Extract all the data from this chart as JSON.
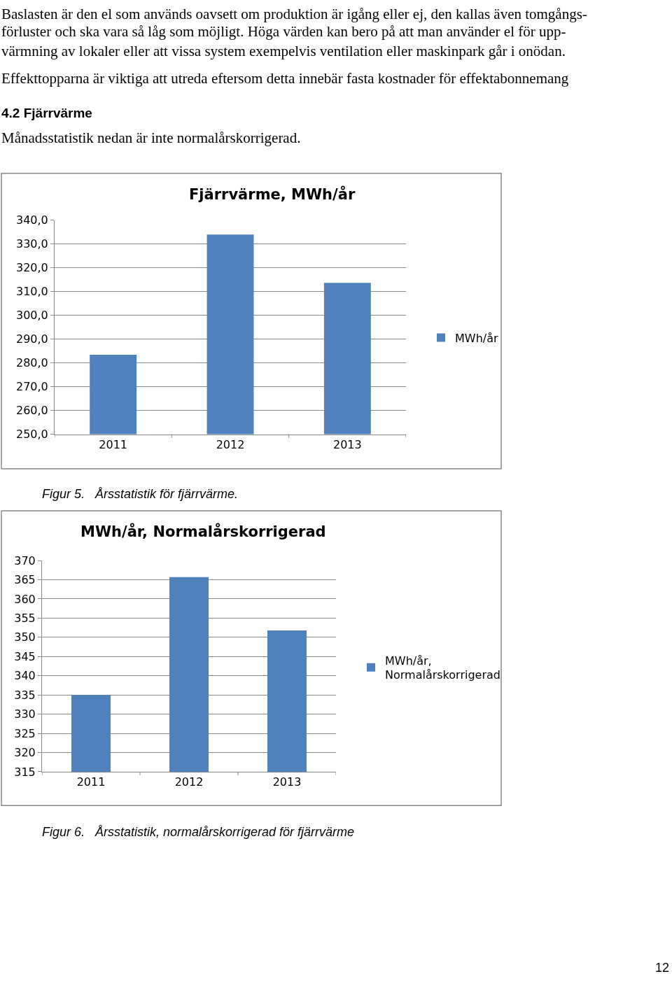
{
  "chart_data": [
    {
      "type": "bar",
      "title": "Fjärrvärme, MWh/år",
      "categories": [
        "2011",
        "2012",
        "2013"
      ],
      "series": [
        {
          "name": "MWh/år",
          "color": "#4f81bd",
          "values": [
            283.4,
            334.0,
            313.7
          ]
        }
      ],
      "ylim": [
        250,
        340
      ],
      "yticks": [
        {
          "value": 250,
          "label": "250,0"
        },
        {
          "value": 260,
          "label": "260,0"
        },
        {
          "value": 270,
          "label": "270,0"
        },
        {
          "value": 280,
          "label": "280,0"
        },
        {
          "value": 290,
          "label": "290,0"
        },
        {
          "value": 300,
          "label": "300,0"
        },
        {
          "value": 310,
          "label": "310,0"
        },
        {
          "value": 320,
          "label": "320,0"
        },
        {
          "value": 330,
          "label": "330,0"
        },
        {
          "value": 340,
          "label": "340,0"
        }
      ],
      "grid": "y",
      "legend": "right",
      "annotations": [
        "Baslasten är den el som används oavsett om produktion är igång eller ej, den kallas även tomgångs-",
        "förluster och ska vara så låg som möjligt. Höga värden kan bero på att man använder el för upp-",
        "värmning av lokaler eller att vissa system exempelvis ventilation eller maskinpark går i onödan.",
        "Effekttopparna är viktiga att utreda eftersom detta innebär fasta kostnader för effektabonnemang",
        "4.2 Fjärrvärme",
        "Månadsstatistik nedan är inte normalårskorrigerad.",
        "Figur 5.   Årsstatistik för fjärrvärme."
      ]
    },
    {
      "type": "bar",
      "title": "MWh/år, Normalårskorrigerad",
      "categories": [
        "2011",
        "2012",
        "2013"
      ],
      "series": [
        {
          "name": "MWh/år, Normalårskorrigerad",
          "color": "#4f81bd",
          "values": [
            335.0,
            365.7,
            351.8
          ]
        }
      ],
      "ylim": [
        315,
        370
      ],
      "yticks": [
        315,
        320,
        325,
        330,
        335,
        340,
        345,
        350,
        355,
        360,
        365,
        370
      ],
      "grid": "y",
      "legend": "right",
      "annotations": [
        "Figur 6.   Årsstatistik, normalårskorrigerad för fjärrvärme",
        "12"
      ]
    }
  ]
}
